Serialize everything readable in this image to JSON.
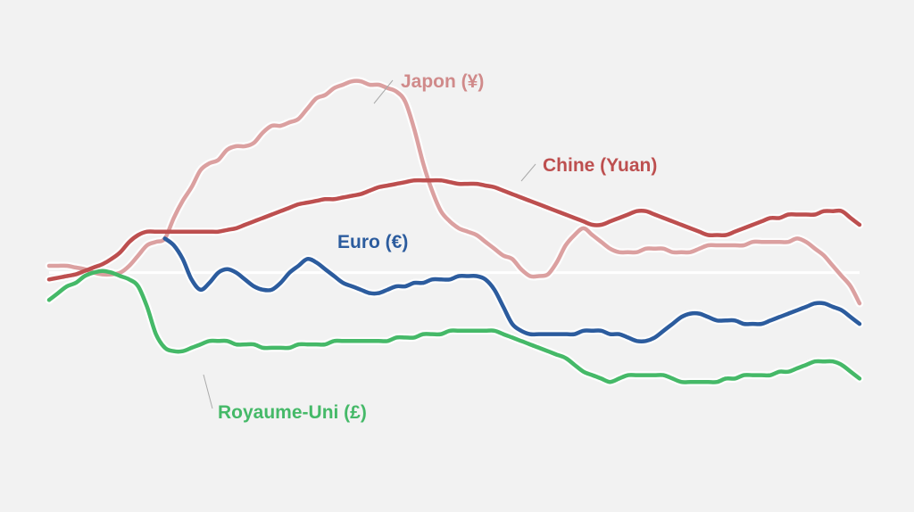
{
  "chart_data": {
    "type": "line",
    "title": "",
    "xlabel": "",
    "ylabel": "",
    "x": [
      0,
      1,
      2,
      3,
      4,
      5,
      6,
      7,
      8,
      9,
      10,
      11,
      12,
      13,
      14,
      15,
      16,
      17,
      18,
      19,
      20,
      21,
      22,
      23,
      24,
      25,
      26,
      27,
      28,
      29,
      30,
      31,
      32,
      33,
      34,
      35,
      36,
      37,
      38,
      39,
      40,
      41,
      42,
      43,
      44,
      45,
      46,
      47,
      48,
      49,
      50,
      51,
      52,
      53,
      54,
      55,
      56,
      57,
      58,
      59,
      60,
      61,
      62,
      63,
      64,
      65,
      66,
      67,
      68,
      69,
      70,
      71,
      72,
      73,
      74,
      75,
      76,
      77,
      78,
      79,
      80,
      81,
      82,
      83,
      84,
      85,
      86,
      87,
      88,
      89,
      90,
      91
    ],
    "ylim": [
      -45,
      55
    ],
    "grid": false,
    "legend": "inline labels",
    "baseline": 0,
    "series": [
      {
        "name": "Japon (¥)",
        "color": "#dba0a0",
        "label_color": "#d08a8a",
        "values": [
          2,
          2,
          2,
          1.5,
          1,
          0,
          -0.5,
          -0.5,
          0,
          2,
          5,
          8,
          9,
          10,
          16,
          21,
          25,
          30,
          32,
          33,
          36,
          37,
          37,
          38,
          41,
          43,
          43,
          44,
          45,
          48,
          51,
          52,
          54,
          55,
          56,
          56,
          55,
          55,
          54,
          53,
          50,
          42,
          32,
          24,
          18,
          15,
          13,
          12,
          11,
          9,
          7,
          5,
          4,
          1,
          -1,
          -1,
          -0.5,
          3,
          8,
          11,
          13,
          11,
          9,
          7,
          6,
          6,
          6,
          7,
          7,
          7,
          6,
          6,
          6,
          7,
          8,
          8,
          8,
          8,
          8,
          9,
          9,
          9,
          9,
          9,
          10,
          9,
          7,
          5,
          2,
          -1,
          -4,
          -9
        ]
      },
      {
        "name": "Chine (Yuan)",
        "color": "#bd4f4f",
        "label_color": "#bd4f4f",
        "values": [
          -2,
          -1.5,
          -1,
          -0.5,
          0.5,
          1.5,
          2.5,
          4,
          6,
          9,
          11,
          12,
          12,
          12,
          12,
          12,
          12,
          12,
          12,
          12,
          12.5,
          13,
          14,
          15,
          16,
          17,
          18,
          19,
          20,
          20.5,
          21,
          21.5,
          21.5,
          22,
          22.5,
          23,
          24,
          25,
          25.5,
          26,
          26.5,
          27,
          27,
          27,
          27,
          26.5,
          26,
          26,
          26,
          25.5,
          25,
          24,
          23,
          22,
          21,
          20,
          19,
          18,
          17,
          16,
          15,
          14,
          14,
          15,
          16,
          17,
          18,
          18,
          17,
          16,
          15,
          14,
          13,
          12,
          11,
          11,
          11,
          12,
          13,
          14,
          15,
          16,
          16,
          17,
          17,
          17,
          17,
          18,
          18,
          18,
          16,
          14
        ]
      },
      {
        "name": "Euro (€)",
        "color": "#2c5c9e",
        "label_color": "#2c5c9e",
        "values": [
          null,
          null,
          null,
          null,
          null,
          null,
          null,
          null,
          null,
          null,
          null,
          null,
          null,
          10,
          8,
          4,
          -2,
          -5,
          -3,
          0,
          1,
          0,
          -2,
          -4,
          -5,
          -5,
          -3,
          0,
          2,
          4,
          3,
          1,
          -1,
          -3,
          -4,
          -5,
          -6,
          -6,
          -5,
          -4,
          -4,
          -3,
          -3,
          -2,
          -2,
          -2,
          -1,
          -1,
          -1,
          -2,
          -5,
          -10,
          -15,
          -17,
          -18,
          -18,
          -18,
          -18,
          -18,
          -18,
          -17,
          -17,
          -17,
          -18,
          -18,
          -19,
          -20,
          -20,
          -19,
          -17,
          -15,
          -13,
          -12,
          -12,
          -13,
          -14,
          -14,
          -14,
          -15,
          -15,
          -15,
          -14,
          -13,
          -12,
          -11,
          -10,
          -9,
          -9,
          -10,
          -11,
          -13,
          -15
        ]
      },
      {
        "name": "Royaume-Uni (£)",
        "color": "#45b968",
        "label_color": "#45b968",
        "values": [
          -8,
          -6,
          -4,
          -3,
          -1,
          0,
          0.5,
          0,
          -1,
          -2,
          -4,
          -10,
          -18,
          -22,
          -23,
          -23,
          -22,
          -21,
          -20,
          -20,
          -20,
          -21,
          -21,
          -21,
          -22,
          -22,
          -22,
          -22,
          -21,
          -21,
          -21,
          -21,
          -20,
          -20,
          -20,
          -20,
          -20,
          -20,
          -20,
          -19,
          -19,
          -19,
          -18,
          -18,
          -18,
          -17,
          -17,
          -17,
          -17,
          -17,
          -17,
          -18,
          -19,
          -20,
          -21,
          -22,
          -23,
          -24,
          -25,
          -27,
          -29,
          -30,
          -31,
          -32,
          -31,
          -30,
          -30,
          -30,
          -30,
          -30,
          -31,
          -32,
          -32,
          -32,
          -32,
          -32,
          -31,
          -31,
          -30,
          -30,
          -30,
          -30,
          -29,
          -29,
          -28,
          -27,
          -26,
          -26,
          -26,
          -27,
          -29,
          -31
        ]
      }
    ]
  }
}
